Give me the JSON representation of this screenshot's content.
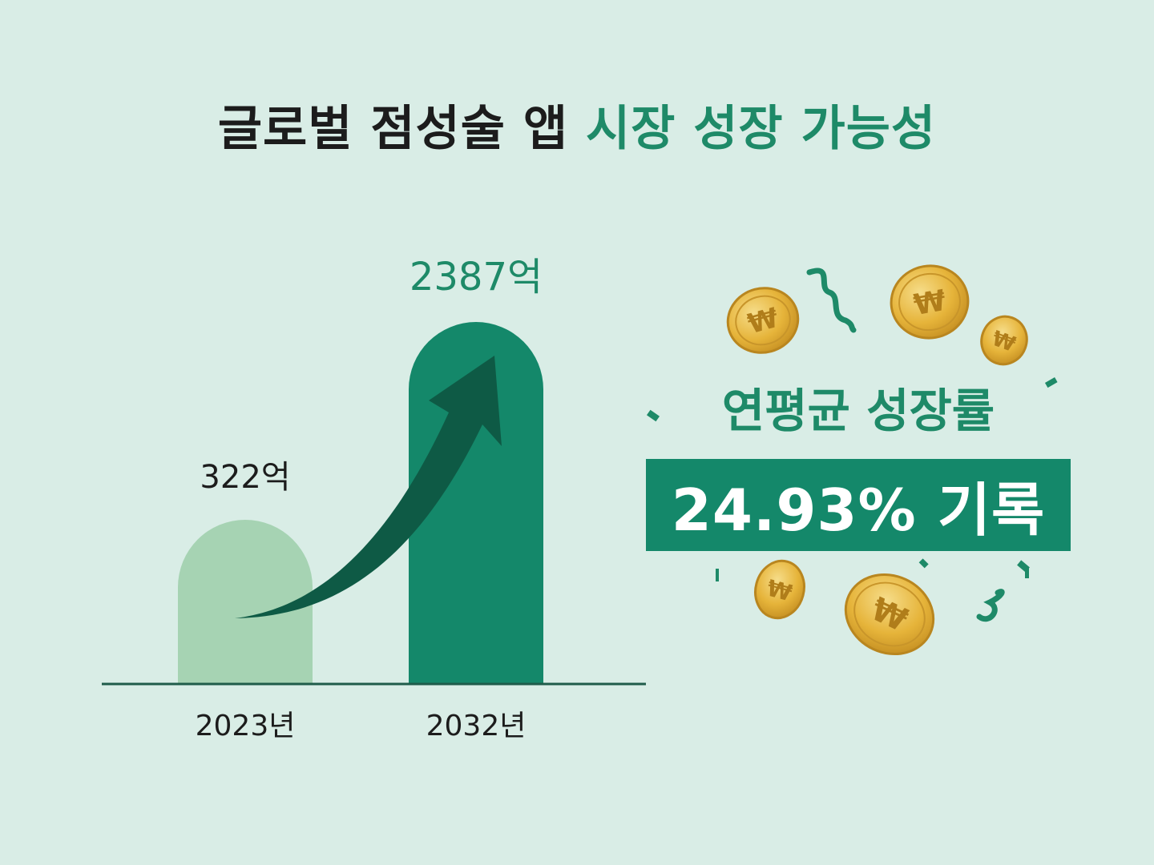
{
  "title": {
    "part1": "글로벌 점성술 앱",
    "part2": "시장 성장 가능성"
  },
  "cagr": {
    "label": "연평균 성장률",
    "value": "24.93% 기록"
  },
  "colors": {
    "background": "#d9ede6",
    "accent": "#1e8a68",
    "bar_light": "#a6d3b3",
    "bar_dark": "#14886a",
    "arrow": "#0e5a45",
    "coin": "#e6b43a"
  },
  "chart_data": {
    "type": "bar",
    "categories": [
      "2023년",
      "2032년"
    ],
    "values": [
      322,
      2387
    ],
    "data_labels": [
      "322억",
      "2387억"
    ],
    "ylim": [
      0,
      2387
    ]
  }
}
